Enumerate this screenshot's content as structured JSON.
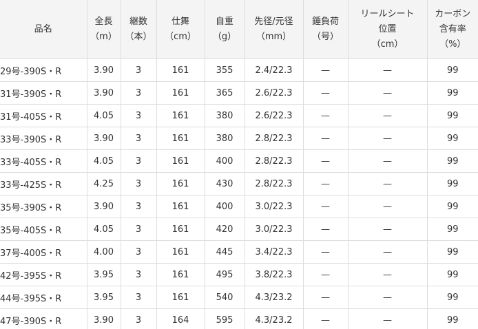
{
  "table": {
    "header": [
      [
        "品名"
      ],
      [
        "全長",
        "（m）"
      ],
      [
        "継数",
        "（本）"
      ],
      [
        "仕舞",
        "（cm）"
      ],
      [
        "自重",
        "（g）"
      ],
      [
        "先径/元径",
        "（mm）"
      ],
      [
        "錘負荷",
        "（号）"
      ],
      [
        "リールシート",
        "位置",
        "（cm）"
      ],
      [
        "カーボン",
        "含有率",
        "（%）"
      ]
    ],
    "rows": [
      [
        "29号-390S・R",
        "3.90",
        "3",
        "161",
        "355",
        "2.4/22.3",
        "—",
        "—",
        "99"
      ],
      [
        "31号-390S・R",
        "3.90",
        "3",
        "161",
        "365",
        "2.6/22.3",
        "—",
        "—",
        "99"
      ],
      [
        "31号-405S・R",
        "4.05",
        "3",
        "161",
        "380",
        "2.6/22.3",
        "—",
        "—",
        "99"
      ],
      [
        "33号-390S・R",
        "3.90",
        "3",
        "161",
        "380",
        "2.8/22.3",
        "—",
        "—",
        "99"
      ],
      [
        "33号-405S・R",
        "4.05",
        "3",
        "161",
        "400",
        "2.8/22.3",
        "—",
        "—",
        "99"
      ],
      [
        "33号-425S・R",
        "4.25",
        "3",
        "161",
        "430",
        "2.8/22.3",
        "—",
        "—",
        "99"
      ],
      [
        "35号-390S・R",
        "3.90",
        "3",
        "161",
        "400",
        "3.0/22.3",
        "—",
        "—",
        "99"
      ],
      [
        "35号-405S・R",
        "4.05",
        "3",
        "161",
        "420",
        "3.0/22.3",
        "—",
        "—",
        "99"
      ],
      [
        "37号-400S・R",
        "4.00",
        "3",
        "161",
        "445",
        "3.4/22.3",
        "—",
        "—",
        "99"
      ],
      [
        "42号-395S・R",
        "3.95",
        "3",
        "161",
        "495",
        "3.8/22.3",
        "—",
        "—",
        "99"
      ],
      [
        "44号-395S・R",
        "3.95",
        "3",
        "161",
        "540",
        "4.3/23.2",
        "—",
        "—",
        "99"
      ],
      [
        "47号-390S・R",
        "3.90",
        "3",
        "164",
        "595",
        "4.3/23.2",
        "—",
        "—",
        "99"
      ]
    ]
  }
}
